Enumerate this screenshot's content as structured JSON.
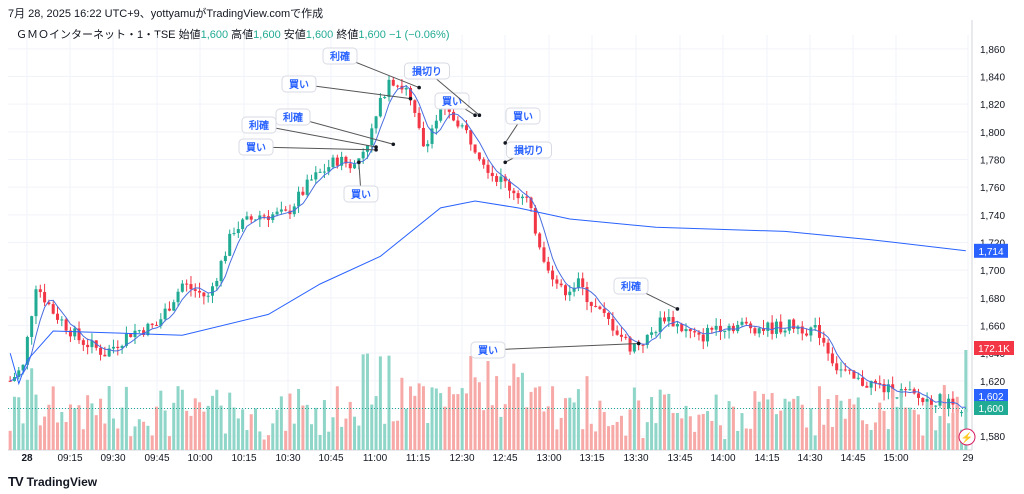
{
  "caption": "7月 28, 2025 16:22 UTC+9、yottyamuがTradingView.comで作成",
  "legend": {
    "symbol": "ＧＭＯインターネット・1・TSE",
    "open_label": "始値",
    "open": "1,600",
    "high_label": "高値",
    "high": "1,600",
    "low_label": "安値",
    "low": "1,600",
    "close_label": "終値",
    "close": "1,600",
    "change": "−1 (−0.06%)"
  },
  "footer": {
    "logo": "TV",
    "brand": "TradingView"
  },
  "colors": {
    "up": "#22ab94",
    "down": "#f23645",
    "vwap": "#2962ff",
    "ma": "#4a6ee0"
  },
  "chart_data": {
    "type": "candlestick",
    "ylim": [
      1570,
      1870
    ],
    "y_ticks": [
      1580,
      1600,
      1620,
      1640,
      1660,
      1680,
      1700,
      1720,
      1740,
      1760,
      1780,
      1800,
      1820,
      1840,
      1860
    ],
    "y_tick_labels": [
      "1,580",
      "1,600",
      "1,620",
      "1,640",
      "1,660",
      "1,680",
      "1,700",
      "1,720",
      "1,740",
      "1,760",
      "1,780",
      "1,800",
      "1,820",
      "1,840",
      "1,860"
    ],
    "x_tick_labels": [
      "28",
      "09:15",
      "09:30",
      "09:45",
      "10:00",
      "10:15",
      "10:30",
      "10:45",
      "11:00",
      "11:15",
      "12:30",
      "12:45",
      "13:00",
      "13:15",
      "13:30",
      "13:45",
      "14:00",
      "14:15",
      "14:30",
      "14:45",
      "15:00",
      "29"
    ],
    "price_path": [
      [
        0,
        1620
      ],
      [
        3,
        1630
      ],
      [
        6,
        1690
      ],
      [
        10,
        1670
      ],
      [
        16,
        1650
      ],
      [
        22,
        1640
      ],
      [
        28,
        1655
      ],
      [
        34,
        1660
      ],
      [
        40,
        1690
      ],
      [
        46,
        1680
      ],
      [
        52,
        1730
      ],
      [
        58,
        1740
      ],
      [
        64,
        1740
      ],
      [
        70,
        1765
      ],
      [
        76,
        1780
      ],
      [
        80,
        1775
      ],
      [
        84,
        1800
      ],
      [
        88,
        1840
      ],
      [
        92,
        1830
      ],
      [
        96,
        1790
      ],
      [
        100,
        1815
      ],
      [
        104,
        1808
      ],
      [
        108,
        1790
      ],
      [
        112,
        1770
      ],
      [
        116,
        1760
      ],
      [
        120,
        1750
      ],
      [
        124,
        1710
      ],
      [
        128,
        1685
      ],
      [
        132,
        1690
      ],
      [
        136,
        1672
      ],
      [
        140,
        1660
      ],
      [
        144,
        1645
      ],
      [
        148,
        1650
      ],
      [
        152,
        1667
      ],
      [
        156,
        1658
      ],
      [
        160,
        1650
      ],
      [
        164,
        1660
      ],
      [
        170,
        1660
      ],
      [
        176,
        1658
      ],
      [
        182,
        1660
      ],
      [
        188,
        1655
      ],
      [
        192,
        1630
      ],
      [
        196,
        1620
      ],
      [
        200,
        1618
      ],
      [
        204,
        1613
      ],
      [
        208,
        1611
      ],
      [
        212,
        1606
      ],
      [
        216,
        1606
      ],
      [
        222,
        1600
      ]
    ],
    "vwap": [
      [
        0,
        1640
      ],
      [
        2,
        1618
      ],
      [
        4,
        1635
      ],
      [
        10,
        1656
      ],
      [
        40,
        1653
      ],
      [
        60,
        1668
      ],
      [
        72,
        1690
      ],
      [
        86,
        1710
      ],
      [
        100,
        1745
      ],
      [
        108,
        1750
      ],
      [
        118,
        1745
      ],
      [
        130,
        1737
      ],
      [
        150,
        1731
      ],
      [
        180,
        1728
      ],
      [
        200,
        1722
      ],
      [
        222,
        1714
      ]
    ],
    "markers": [
      {
        "label": "買い",
        "candle": 85,
        "price": 1787
      },
      {
        "label": "利確",
        "candle": 85,
        "price": 1789
      },
      {
        "label": "利確",
        "candle": 89,
        "price": 1791
      },
      {
        "label": "買い",
        "candle": 81,
        "price": 1778
      },
      {
        "label": "買い",
        "candle": 93,
        "price": 1824
      },
      {
        "label": "利確",
        "candle": 95,
        "price": 1832
      },
      {
        "label": "買い",
        "candle": 108,
        "price": 1812
      },
      {
        "label": "損切り",
        "candle": 109,
        "price": 1812
      },
      {
        "label": "買い",
        "candle": 115,
        "price": 1792
      },
      {
        "label": "損切り",
        "candle": 115,
        "price": 1778
      },
      {
        "label": "買い",
        "candle": 146,
        "price": 1647
      },
      {
        "label": "利確",
        "candle": 155,
        "price": 1672
      }
    ],
    "price_tags": [
      {
        "label": "1,714",
        "price": 1714,
        "color": "#2962ff"
      },
      {
        "label": "1,602",
        "price": 1602,
        "color": "#2962ff"
      },
      {
        "label": "1,600",
        "price": 1600,
        "color": "#22ab94"
      }
    ],
    "volume_tag": "172.1K"
  }
}
